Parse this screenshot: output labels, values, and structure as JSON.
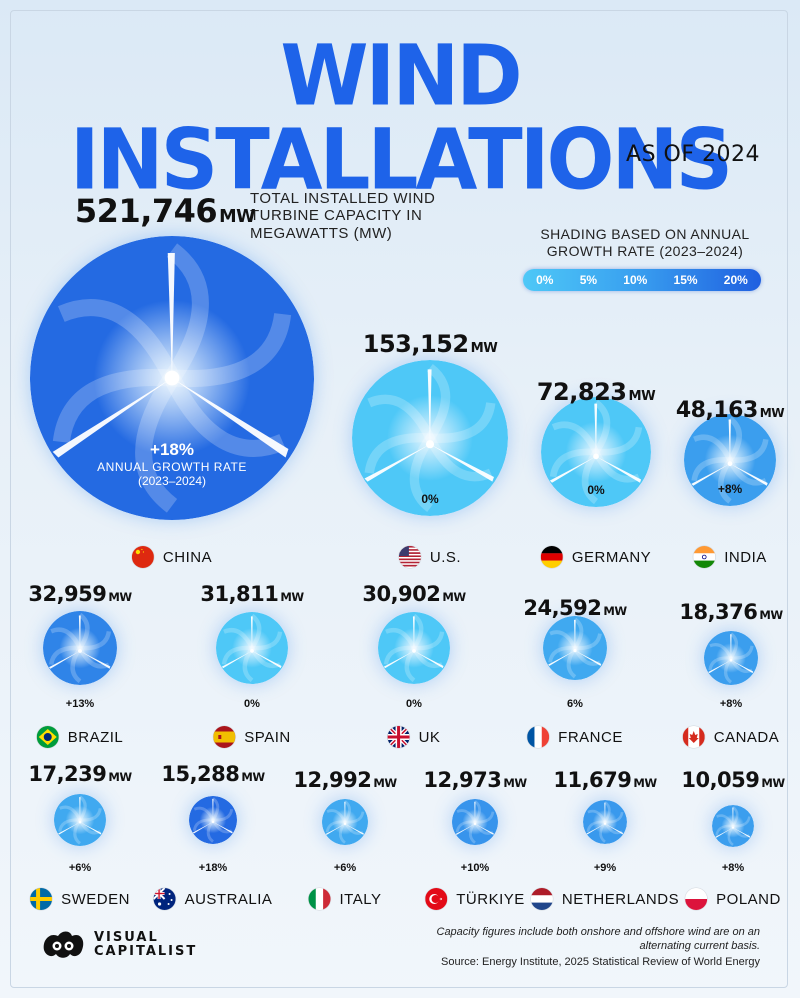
{
  "header": {
    "title": "WIND INSTALLATIONS",
    "subtitle": "AS OF 2024"
  },
  "annotation": {
    "capacity_note": "TOTAL INSTALLED WIND TURBINE CAPACITY IN MEGAWATTS (MW)",
    "growth_label_line1": "ANNUAL GROWTH RATE",
    "growth_label_line2": "(2023–2024)"
  },
  "legend": {
    "title": "SHADING BASED ON ANNUAL GROWTH RATE (2023–2024)",
    "stops": [
      "0%",
      "5%",
      "10%",
      "15%",
      "20%"
    ],
    "color_low": "#4ec8f7",
    "color_high": "#1f5fe0"
  },
  "unit": "MW",
  "chart_data": {
    "type": "bubble",
    "title": "WIND INSTALLATIONS",
    "subtitle": "AS OF 2024",
    "value_label": "TOTAL INSTALLED WIND TURBINE CAPACITY IN MEGAWATTS (MW)",
    "color_label": "SHADING BASED ON ANNUAL GROWTH RATE (2023–2024)",
    "color_scale": [
      0,
      20
    ],
    "countries": [
      {
        "name": "CHINA",
        "capacity_mw": 521746,
        "capacity_label": "521,746",
        "growth_pct": 18,
        "growth_label": "+18%",
        "flag": "china"
      },
      {
        "name": "U.S.",
        "capacity_mw": 153152,
        "capacity_label": "153,152",
        "growth_pct": 0,
        "growth_label": "0%",
        "flag": "us"
      },
      {
        "name": "GERMANY",
        "capacity_mw": 72823,
        "capacity_label": "72,823",
        "growth_pct": 0,
        "growth_label": "0%",
        "flag": "germany"
      },
      {
        "name": "INDIA",
        "capacity_mw": 48163,
        "capacity_label": "48,163",
        "growth_pct": 8,
        "growth_label": "+8%",
        "flag": "india"
      },
      {
        "name": "BRAZIL",
        "capacity_mw": 32959,
        "capacity_label": "32,959",
        "growth_pct": 13,
        "growth_label": "+13%",
        "flag": "brazil"
      },
      {
        "name": "SPAIN",
        "capacity_mw": 31811,
        "capacity_label": "31,811",
        "growth_pct": 0,
        "growth_label": "0%",
        "flag": "spain"
      },
      {
        "name": "UK",
        "capacity_mw": 30902,
        "capacity_label": "30,902",
        "growth_pct": 0,
        "growth_label": "0%",
        "flag": "uk"
      },
      {
        "name": "FRANCE",
        "capacity_mw": 24592,
        "capacity_label": "24,592",
        "growth_pct": 6,
        "growth_label": "6%",
        "flag": "france"
      },
      {
        "name": "CANADA",
        "capacity_mw": 18376,
        "capacity_label": "18,376",
        "growth_pct": 8,
        "growth_label": "+8%",
        "flag": "canada"
      },
      {
        "name": "SWEDEN",
        "capacity_mw": 17239,
        "capacity_label": "17,239",
        "growth_pct": 6,
        "growth_label": "+6%",
        "flag": "sweden"
      },
      {
        "name": "AUSTRALIA",
        "capacity_mw": 15288,
        "capacity_label": "15,288",
        "growth_pct": 18,
        "growth_label": "+18%",
        "flag": "australia"
      },
      {
        "name": "ITALY",
        "capacity_mw": 12992,
        "capacity_label": "12,992",
        "growth_pct": 6,
        "growth_label": "+6%",
        "flag": "italy"
      },
      {
        "name": "TÜRKIYE",
        "capacity_mw": 12973,
        "capacity_label": "12,973",
        "growth_pct": 10,
        "growth_label": "+10%",
        "flag": "turkiye"
      },
      {
        "name": "NETHERLANDS",
        "capacity_mw": 11679,
        "capacity_label": "11,679",
        "growth_pct": 9,
        "growth_label": "+9%",
        "flag": "netherlands"
      },
      {
        "name": "POLAND",
        "capacity_mw": 10059,
        "capacity_label": "10,059",
        "growth_pct": 8,
        "growth_label": "+8%",
        "flag": "poland"
      }
    ]
  },
  "footer": {
    "note": "Capacity figures include both onshore and offshore wind are on an alternating current basis.",
    "source": "Source: Energy Institute, 2025 Statistical Review of World Energy",
    "logo_line1": "VISUAL",
    "logo_line2": "CAPITALIST"
  }
}
